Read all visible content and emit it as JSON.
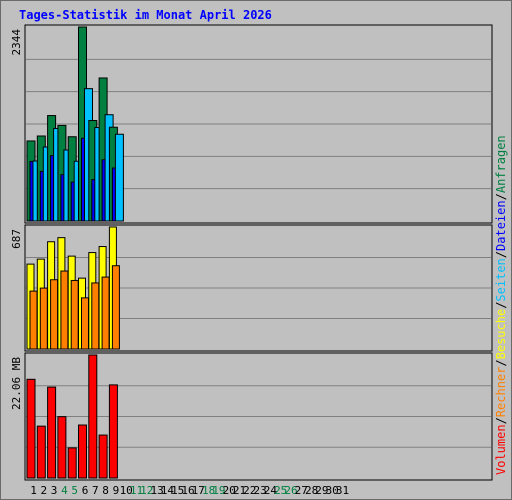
{
  "title": "Tages-Statistik im Monat April 2026",
  "legend": [
    {
      "label": "Anfragen",
      "color": "#008040"
    },
    {
      "label": "Dateien",
      "color": "#0000ff"
    },
    {
      "label": "Seiten",
      "color": "#00c0ff"
    },
    {
      "label": "Besuche",
      "color": "#ffff00"
    },
    {
      "label": "Rechner",
      "color": "#ff8000"
    },
    {
      "label": "Volumen",
      "color": "#ff0000"
    }
  ],
  "legend_separator": "/",
  "chart_data": {
    "type": "bar",
    "title": "Tages-Statistik im Monat April 2026",
    "categories": [
      "1",
      "2",
      "3",
      "4",
      "5",
      "6",
      "7",
      "8",
      "9",
      "10",
      "11",
      "12",
      "13",
      "14",
      "15",
      "16",
      "17",
      "18",
      "19",
      "20",
      "21",
      "22",
      "23",
      "24",
      "25",
      "26",
      "27",
      "28",
      "29",
      "30",
      "31"
    ],
    "weekend_days": [
      "4",
      "5",
      "11",
      "12",
      "18",
      "19",
      "25",
      "26"
    ],
    "colors": {
      "weekday_label": "#000000",
      "weekend_label": "#008040",
      "background": "#c0c0c0",
      "grid": "#808080",
      "title": "#0000ff"
    },
    "panels": [
      {
        "name": "hits",
        "max_label": "2344",
        "ylim": [
          0,
          2344
        ],
        "series": [
          {
            "name": "Anfragen",
            "color": "#008040",
            "values": [
              967,
              1027,
              1274,
              1155,
              1018,
              2344,
              1214,
              1728,
              1133,
              0,
              0,
              0,
              0,
              0,
              0,
              0,
              0,
              0,
              0,
              0,
              0,
              0,
              0,
              0,
              0,
              0,
              0,
              0,
              0,
              0,
              0
            ]
          },
          {
            "name": "Dateien",
            "color": "#0000ff",
            "values": [
              720,
              600,
              790,
              560,
              470,
              1000,
              500,
              740,
              640,
              0,
              0,
              0,
              0,
              0,
              0,
              0,
              0,
              0,
              0,
              0,
              0,
              0,
              0,
              0,
              0,
              0,
              0,
              0,
              0,
              0,
              0
            ]
          },
          {
            "name": "Seiten",
            "color": "#00c0ff",
            "values": [
              725,
              894,
              1118,
              858,
              722,
              1599,
              1129,
              1284,
              1048,
              0,
              0,
              0,
              0,
              0,
              0,
              0,
              0,
              0,
              0,
              0,
              0,
              0,
              0,
              0,
              0,
              0,
              0,
              0,
              0,
              0,
              0
            ]
          }
        ]
      },
      {
        "name": "visits",
        "max_label": "687",
        "ylim": [
          0,
          687
        ],
        "series": [
          {
            "name": "Besuche",
            "color": "#ffff00",
            "values": [
              478,
              506,
              604,
              627,
              523,
              399,
              543,
              577,
              687,
              0,
              0,
              0,
              0,
              0,
              0,
              0,
              0,
              0,
              0,
              0,
              0,
              0,
              0,
              0,
              0,
              0,
              0,
              0,
              0,
              0,
              0
            ]
          },
          {
            "name": "Rechner",
            "color": "#ff8000",
            "values": [
              326,
              343,
              390,
              439,
              386,
              288,
              372,
              405,
              469,
              0,
              0,
              0,
              0,
              0,
              0,
              0,
              0,
              0,
              0,
              0,
              0,
              0,
              0,
              0,
              0,
              0,
              0,
              0,
              0,
              0,
              0
            ]
          }
        ]
      },
      {
        "name": "volume",
        "max_label": "22.06 MB",
        "ylim": [
          0,
          22.06
        ],
        "series": [
          {
            "name": "Volumen",
            "color": "#ff0000",
            "values": [
              17.7,
              9.3,
              16.3,
              11.0,
              5.4,
              9.5,
              22.06,
              7.7,
              16.7,
              0,
              0,
              0,
              0,
              0,
              0,
              0,
              0,
              0,
              0,
              0,
              0,
              0,
              0,
              0,
              0,
              0,
              0,
              0,
              0,
              0,
              0
            ]
          }
        ]
      }
    ]
  }
}
